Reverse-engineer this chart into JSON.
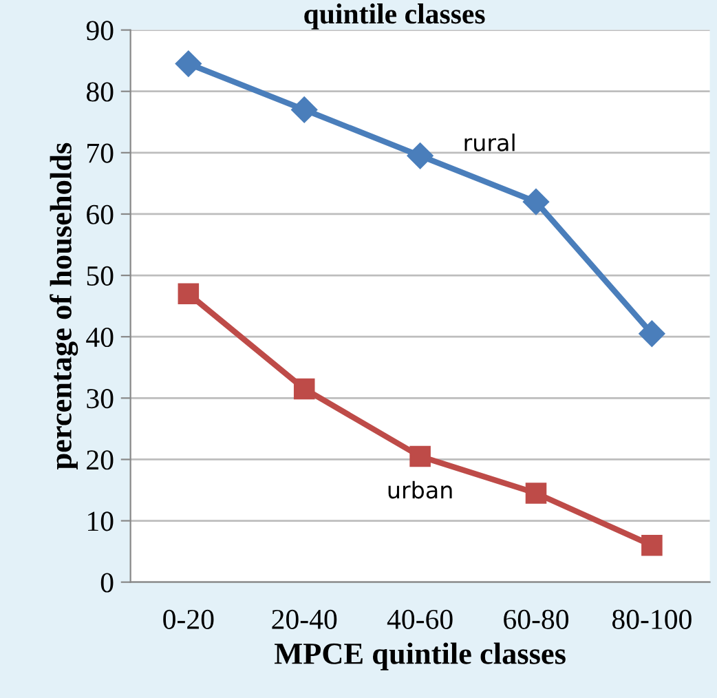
{
  "chart_data": {
    "type": "line",
    "title": "quintile classes",
    "xlabel": "MPCE quintile classes",
    "ylabel": "percentage of households",
    "categories": [
      "0-20",
      "20-40",
      "40-60",
      "60-80",
      "80-100"
    ],
    "series": [
      {
        "name": "rural",
        "color": "#4a7ebb",
        "marker": "diamond",
        "values": [
          84.5,
          77,
          69.5,
          62,
          40.5
        ]
      },
      {
        "name": "urban",
        "color": "#be4b48",
        "marker": "square",
        "values": [
          47,
          31.5,
          20.5,
          14.5,
          6
        ]
      }
    ],
    "ylim": [
      0,
      90
    ],
    "yticks": [
      0,
      10,
      20,
      30,
      40,
      50,
      60,
      70,
      80,
      90
    ],
    "grid": "y",
    "legend": false
  }
}
